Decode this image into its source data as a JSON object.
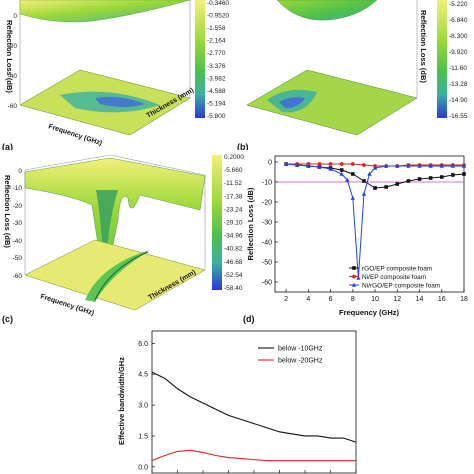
{
  "panels": {
    "a": {
      "label": "(a)",
      "zlabel": "Reflection Loss (dB)",
      "xlabel": "Frequency (GHz)",
      "ylabel": "Thickness (mm)",
      "zticks": [
        "0",
        "-20",
        "-40",
        "-60"
      ],
      "colorbar": [
        "-0.3460",
        "-0.9520",
        "-1.558",
        "-2.164",
        "-2.770",
        "-3.376",
        "-3.982",
        "-4.588",
        "-5.194",
        "-5.800"
      ]
    },
    "b": {
      "label": "(b)",
      "zlabel": "Reflection Loss (dB)",
      "colorbar": [
        "-5.220",
        "-6.840",
        "-8.300",
        "-9.920",
        "-11.60",
        "-13.28",
        "-14.90",
        "-16.55"
      ]
    },
    "c": {
      "label": "(c)",
      "zlabel": "Reflection Loss (dB)",
      "xlabel": "Frequency (GHz)",
      "ylabel": "Thickness (mm)",
      "zticks": [
        "0",
        "-10",
        "-20",
        "-30",
        "-40",
        "-50",
        "-60"
      ],
      "colorbar": [
        "0.2000",
        "-5.660",
        "-11.52",
        "-17.38",
        "-23.24",
        "-29.10",
        "-34.96",
        "-40.82",
        "-46.68",
        "-52.54",
        "-58.40"
      ]
    },
    "d": {
      "label": "(d)",
      "xlabel": "Frequency (GHz)",
      "ylabel": "Reflection Loss (dB)",
      "xticks": [
        "2",
        "4",
        "6",
        "8",
        "10",
        "12",
        "14",
        "16",
        "18"
      ],
      "yticks": [
        "0",
        "-10",
        "-20",
        "-30",
        "-40",
        "-50",
        "-60"
      ]
    },
    "e": {
      "ylabel": "Effective bandwidth/GHz",
      "yticks": [
        "0.0",
        "1.5",
        "3.0",
        "4.5",
        "6.0"
      ]
    }
  },
  "colors": {
    "colormap": [
      "#2838d8",
      "#3f8ad8",
      "#3cb0a0",
      "#4cc04c",
      "#9ad838",
      "#f2f07a"
    ],
    "black": "#111111",
    "red": "#e02222",
    "blue": "#2244dd",
    "threshold": "#cc44cc"
  },
  "chart_data": [
    {
      "type": "line",
      "panel": "d",
      "xlabel": "Frequency (GHz)",
      "ylabel": "Reflection Loss (dB)",
      "xlim": [
        1,
        18
      ],
      "ylim": [
        -65,
        3
      ],
      "threshold": -10,
      "legend_position": "bottom-right",
      "series": [
        {
          "name": "rGO/EP composite foam",
          "color": "#111111",
          "marker": "square",
          "x": [
            2,
            3,
            4,
            5,
            6,
            7,
            8,
            9,
            10,
            11,
            12,
            13,
            14,
            15,
            16,
            17,
            18
          ],
          "y": [
            -1,
            -1.5,
            -2,
            -2.5,
            -3,
            -4,
            -6,
            -9.5,
            -13,
            -12.5,
            -11,
            -9.5,
            -8.5,
            -8,
            -7.5,
            -6.5,
            -6
          ]
        },
        {
          "name": "Ni/EP composite foam",
          "color": "#e02222",
          "marker": "circle",
          "x": [
            2,
            3,
            4,
            5,
            6,
            7,
            8,
            9,
            10,
            11,
            12,
            13,
            14,
            15,
            16,
            17,
            18
          ],
          "y": [
            -1,
            -1,
            -1,
            -1,
            -1,
            -1,
            -1,
            -1.5,
            -2,
            -2,
            -2,
            -1.5,
            -1.5,
            -1.5,
            -1.5,
            -1.5,
            -1.5
          ]
        },
        {
          "name": "Ni/rGO/EP composite foam",
          "color": "#2244dd",
          "marker": "triangle",
          "x": [
            2,
            3,
            4,
            5,
            6,
            7,
            7.5,
            8,
            8.5,
            9,
            9.5,
            10,
            11,
            12,
            13,
            14,
            15,
            16,
            17,
            18
          ],
          "y": [
            -1,
            -1.5,
            -2,
            -2.5,
            -3.5,
            -6,
            -9,
            -18,
            -58,
            -16,
            -6,
            -3,
            -2,
            -2,
            -2,
            -2,
            -2,
            -2,
            -2,
            -2
          ]
        }
      ]
    },
    {
      "type": "line",
      "panel": "e",
      "ylabel": "Effective bandwidth/GHz",
      "ylim": [
        -0.3,
        6.6
      ],
      "legend_position": "top-right",
      "series": [
        {
          "name": "below -10GHz",
          "color": "#111111",
          "x": [
            1,
            1.25,
            1.5,
            1.75,
            2,
            2.25,
            2.5,
            2.75,
            3,
            3.25,
            3.5,
            3.75,
            4,
            4.25,
            4.5,
            4.75,
            5
          ],
          "y": [
            4.6,
            4.3,
            3.8,
            3.4,
            3.1,
            2.8,
            2.5,
            2.3,
            2.1,
            1.9,
            1.7,
            1.6,
            1.5,
            1.5,
            1.4,
            1.4,
            1.2
          ]
        },
        {
          "name": "below -20GHz",
          "color": "#e02222",
          "x": [
            1,
            1.25,
            1.5,
            1.75,
            2,
            2.25,
            2.5,
            2.75,
            3,
            3.25,
            3.5,
            3.75,
            4,
            4.25,
            4.5,
            4.75,
            5
          ],
          "y": [
            0.3,
            0.55,
            0.75,
            0.8,
            0.7,
            0.55,
            0.45,
            0.4,
            0.35,
            0.3,
            0.3,
            0.3,
            0.3,
            0.3,
            0.3,
            0.3,
            0.3
          ]
        }
      ]
    }
  ]
}
